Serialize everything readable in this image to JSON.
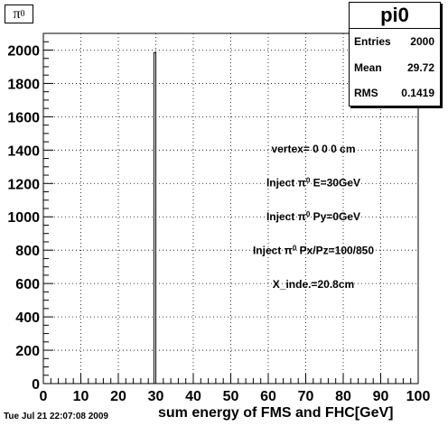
{
  "header": {
    "title_base": "π",
    "title_sup": "0",
    "timestamp": "Tue Jul 21 22:07:08 2009"
  },
  "stats": {
    "name": "pi0",
    "rows": [
      {
        "label": "Entries",
        "value": "2000"
      },
      {
        "label": "Mean",
        "value": "29.72"
      },
      {
        "label": "RMS",
        "value": "0.1419"
      }
    ]
  },
  "annotations": [
    {
      "parts": [
        "vertex= 0 0 0 cm"
      ]
    },
    {
      "parts": [
        "Inject π",
        "0",
        " E=30GeV"
      ]
    },
    {
      "parts": [
        "Inject π",
        "0",
        " Py=0GeV"
      ]
    },
    {
      "parts": [
        "Inject π",
        "0",
        " Px/Pz=100/850"
      ]
    },
    {
      "parts": [
        "X_inde.=20.8cm"
      ]
    }
  ],
  "chart_data": {
    "type": "bar",
    "title": "π0",
    "xlabel": "sum energy of FMS and FHC[GeV]",
    "ylabel": "",
    "xlim": [
      0,
      100
    ],
    "ylim": [
      0,
      2100
    ],
    "xticks": [
      0,
      10,
      20,
      30,
      40,
      50,
      60,
      70,
      80,
      90,
      100
    ],
    "yticks": [
      0,
      200,
      400,
      600,
      800,
      1000,
      1200,
      1400,
      1600,
      1800,
      2000
    ],
    "grid": true,
    "bins": [
      {
        "low": 29.5,
        "high": 30.0,
        "count": 1985
      }
    ],
    "colors": {
      "line": "#000000",
      "grid": "#000000",
      "background": "#ffffff"
    }
  }
}
